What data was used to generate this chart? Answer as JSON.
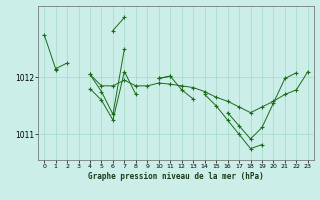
{
  "title": "Graphe pression niveau de la mer (hPa)",
  "bg_color": "#cceee8",
  "grid_color": "#aaddcc",
  "line_color": "#1a6b1a",
  "marker_color": "#1a6b1a",
  "xlim": [
    -0.5,
    23.5
  ],
  "ylim": [
    1010.55,
    1013.25
  ],
  "yticks": [
    1011,
    1012
  ],
  "xticks": [
    0,
    1,
    2,
    3,
    4,
    5,
    6,
    7,
    8,
    9,
    10,
    11,
    12,
    13,
    14,
    15,
    16,
    17,
    18,
    19,
    20,
    21,
    22,
    23
  ],
  "series": [
    [
      1012.75,
      1012.15,
      1012.25,
      null,
      1012.05,
      1011.85,
      1011.85,
      1011.95,
      1011.85,
      1011.85,
      1011.9,
      1011.88,
      1011.85,
      1011.82,
      1011.75,
      1011.65,
      1011.58,
      1011.48,
      1011.38,
      1011.48,
      1011.58,
      1011.7,
      1011.78,
      1012.1
    ],
    [
      null,
      null,
      null,
      null,
      1012.05,
      1011.75,
      1011.35,
      1012.5,
      null,
      null,
      1011.98,
      1012.02,
      null,
      null,
      1011.7,
      1011.5,
      1011.25,
      1011.0,
      1010.75,
      1010.82,
      null,
      null,
      null,
      null
    ],
    [
      null,
      null,
      null,
      null,
      1011.8,
      1011.6,
      1011.25,
      1012.1,
      1011.7,
      null,
      1011.98,
      1012.02,
      1011.78,
      1011.62,
      null,
      null,
      1011.38,
      1011.15,
      1010.92,
      1011.12,
      1011.55,
      1011.98,
      1012.08,
      null
    ],
    [
      null,
      1012.12,
      null,
      null,
      null,
      null,
      1012.82,
      1013.05,
      null,
      null,
      null,
      null,
      null,
      null,
      null,
      null,
      null,
      null,
      null,
      null,
      null,
      null,
      null,
      null
    ]
  ]
}
